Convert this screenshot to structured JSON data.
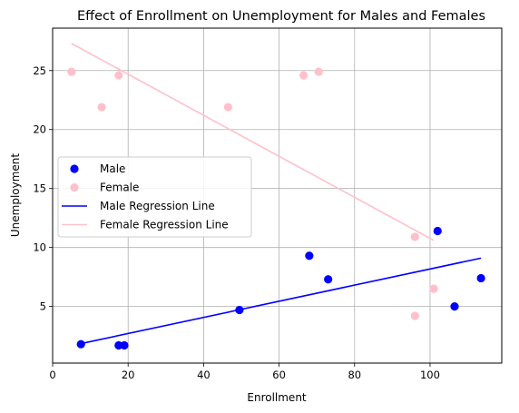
{
  "chart_data": {
    "type": "scatter",
    "title": "Effect of Enrollment on Unemployment for Males and Females",
    "xlabel": "Enrollment",
    "ylabel": "Unemployment",
    "xlim": [
      0,
      119
    ],
    "ylim": [
      0.2,
      28.6
    ],
    "xticks": [
      0,
      20,
      40,
      60,
      80,
      100
    ],
    "yticks": [
      5,
      10,
      15,
      20,
      25
    ],
    "grid": true,
    "legend_position": "center-left",
    "series": [
      {
        "name": "Male",
        "kind": "points",
        "color": "#0000ff",
        "points": [
          {
            "x": 7.5,
            "y": 1.8
          },
          {
            "x": 17.5,
            "y": 1.7
          },
          {
            "x": 19.0,
            "y": 1.7
          },
          {
            "x": 49.5,
            "y": 4.7
          },
          {
            "x": 68.0,
            "y": 9.3
          },
          {
            "x": 73.0,
            "y": 7.3
          },
          {
            "x": 102.0,
            "y": 11.4
          },
          {
            "x": 106.5,
            "y": 5.0
          },
          {
            "x": 113.5,
            "y": 7.4
          }
        ]
      },
      {
        "name": "Female",
        "kind": "points",
        "color": "#ffc0cb",
        "points": [
          {
            "x": 5.0,
            "y": 24.9
          },
          {
            "x": 13.0,
            "y": 21.9
          },
          {
            "x": 17.5,
            "y": 24.6
          },
          {
            "x": 46.5,
            "y": 21.9
          },
          {
            "x": 66.5,
            "y": 24.6
          },
          {
            "x": 70.5,
            "y": 24.9
          },
          {
            "x": 96.0,
            "y": 10.9
          },
          {
            "x": 96.0,
            "y": 4.2
          },
          {
            "x": 101.0,
            "y": 6.5
          }
        ]
      },
      {
        "name": "Male Regression Line",
        "kind": "line",
        "color": "#0000ff",
        "points": [
          {
            "x": 7.5,
            "y": 1.85
          },
          {
            "x": 113.5,
            "y": 9.1
          }
        ]
      },
      {
        "name": "Female Regression Line",
        "kind": "line",
        "color": "#ffc0cb",
        "points": [
          {
            "x": 5.0,
            "y": 27.3
          },
          {
            "x": 101.0,
            "y": 10.6
          }
        ]
      }
    ]
  }
}
